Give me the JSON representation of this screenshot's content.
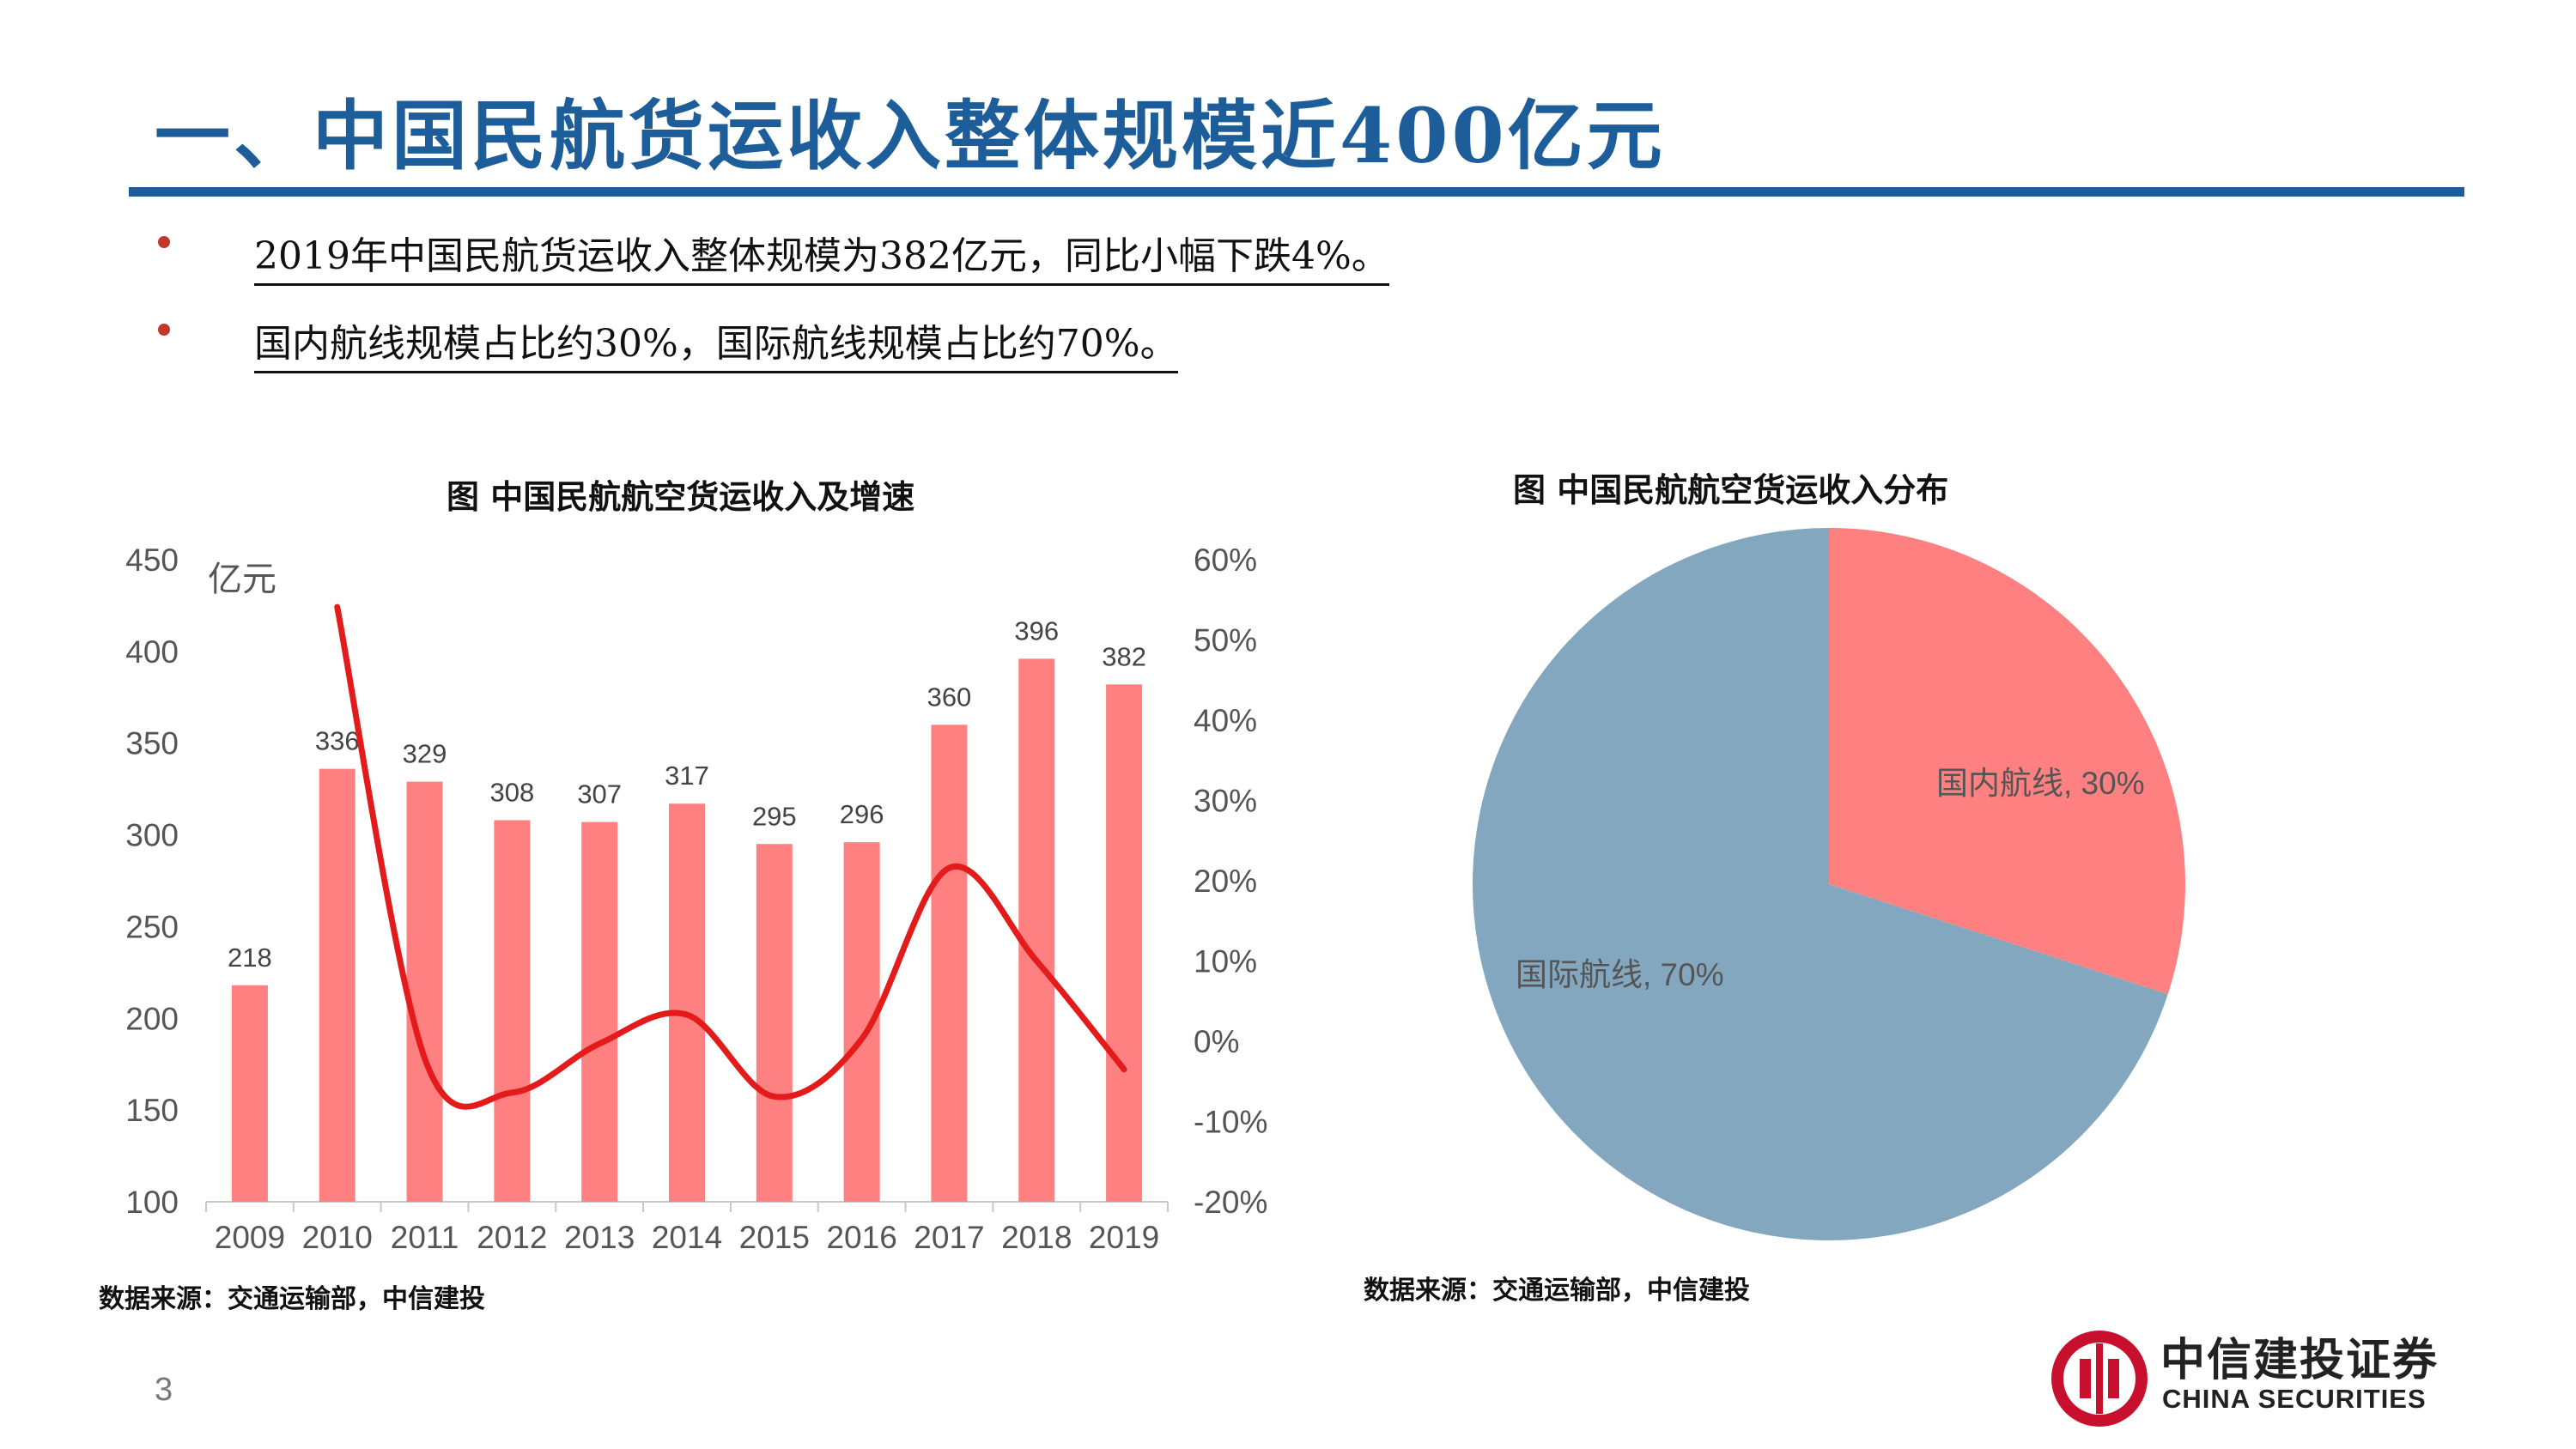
{
  "slide": {
    "title": "一、中国民航货运收入整体规模近400亿元",
    "bullets": [
      "2019年中国民航货运收入整体规模为382亿元，同比小幅下跌4%。",
      "国内航线规模占比约30%，国际航线规模占比约70%。"
    ],
    "page_number": "3"
  },
  "logo": {
    "name_cn": "中信建投证券",
    "name_en": "CHINA SECURITIES"
  },
  "colors": {
    "title_blue": "#1d5d99",
    "bullet_red": "#c0392b",
    "bar_pink": "#ff8080",
    "line_red": "#e31b1b",
    "pie_international": "#84a7c0",
    "pie_domestic": "#ff8080",
    "logo_red": "#c8102e"
  },
  "chart_data": [
    {
      "type": "bar",
      "title": "图  中国民航航空货运收入及增速",
      "source": "数据来源：交通运输部，中信建投",
      "y_unit_label": "亿元",
      "categories": [
        "2009",
        "2010",
        "2011",
        "2012",
        "2013",
        "2014",
        "2015",
        "2016",
        "2017",
        "2018",
        "2019"
      ],
      "series": [
        {
          "kind": "bar",
          "values": [
            218,
            336,
            329,
            308,
            307,
            317,
            295,
            296,
            360,
            396,
            382
          ]
        },
        {
          "kind": "line",
          "axis": "right",
          "values": [
            null,
            54.1,
            -2.1,
            -6.4,
            -0.3,
            3.3,
            -6.9,
            0.3,
            21.6,
            10.0,
            -3.5
          ]
        }
      ],
      "y_left": {
        "min": 100,
        "max": 450,
        "ticks": [
          "450",
          "400",
          "350",
          "300",
          "250",
          "200",
          "150",
          "100"
        ]
      },
      "y_right": {
        "min": -20,
        "max": 60,
        "ticks": [
          "60%",
          "50%",
          "40%",
          "30%",
          "20%",
          "10%",
          "0%",
          "-10%",
          "-20%"
        ]
      },
      "data_labels": true,
      "grid": false
    },
    {
      "type": "pie",
      "title": "图  中国民航航空货运收入分布",
      "source": "数据来源：交通运输部，中信建投",
      "slices": [
        {
          "label": "国内航线, 30%",
          "value": 30
        },
        {
          "label": "国际航线, 70%",
          "value": 70
        }
      ]
    }
  ]
}
